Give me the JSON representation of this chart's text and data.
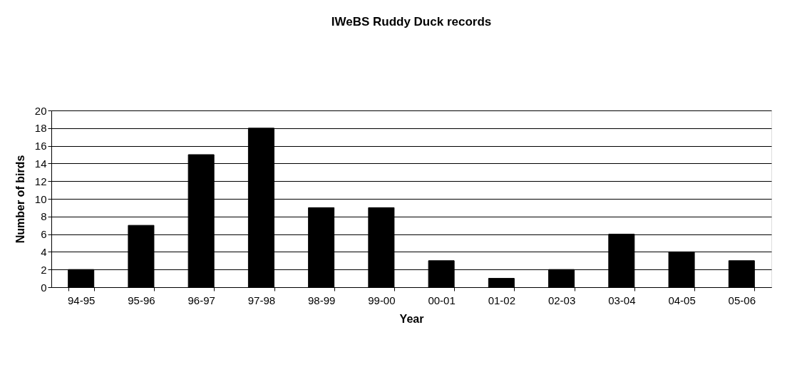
{
  "chart_data": {
    "type": "bar",
    "title": "IWeBS Ruddy Duck records",
    "xlabel": "Year",
    "ylabel": "Number of birds",
    "categories": [
      "94-95",
      "95-96",
      "96-97",
      "97-98",
      "98-99",
      "99-00",
      "00-01",
      "01-02",
      "02-03",
      "03-04",
      "04-05",
      "05-06"
    ],
    "values": [
      2,
      7,
      15,
      18,
      9,
      9,
      3,
      1,
      2,
      6,
      4,
      3
    ],
    "color": "#000000",
    "ylim": [
      0,
      20
    ],
    "yticks": [
      0,
      2,
      4,
      6,
      8,
      10,
      12,
      14,
      16,
      18,
      20
    ],
    "grid": "y"
  }
}
